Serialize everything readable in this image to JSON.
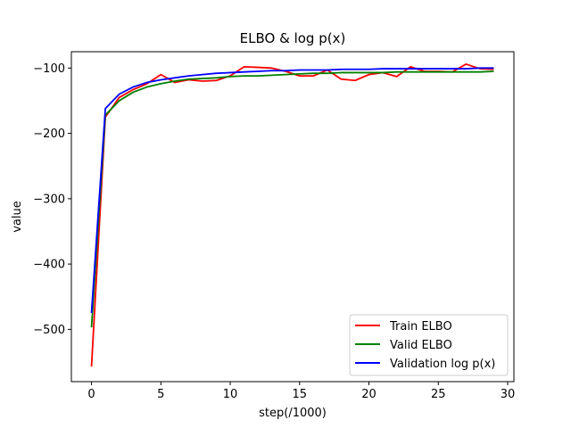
{
  "chart_data": {
    "type": "line",
    "title": "ELBO & log p(x)",
    "xlabel": "step(/1000)",
    "ylabel": "value",
    "xlim": [
      -1.45,
      30.45
    ],
    "ylim": [
      -580,
      -75
    ],
    "xticks": [
      0,
      5,
      10,
      15,
      20,
      25,
      30
    ],
    "yticks": [
      -500,
      -400,
      -300,
      -200,
      -100
    ],
    "grid": false,
    "legend_position": "lower-right",
    "x": [
      0,
      1,
      2,
      3,
      4,
      5,
      6,
      7,
      8,
      9,
      10,
      11,
      12,
      13,
      14,
      15,
      16,
      17,
      18,
      19,
      20,
      21,
      22,
      23,
      24,
      25,
      26,
      27,
      28,
      29
    ],
    "series": [
      {
        "name": "Train ELBO",
        "color": "#ff0000",
        "values": [
          -557,
          -175,
          -145,
          -133,
          -124,
          -110,
          -122,
          -118,
          -120,
          -119,
          -112,
          -98,
          -99,
          -100,
          -105,
          -112,
          -112,
          -103,
          -117,
          -119,
          -110,
          -107,
          -113,
          -98,
          -105,
          -105,
          -106,
          -94,
          -101,
          -102
        ]
      },
      {
        "name": "Valid ELBO",
        "color": "#008000",
        "values": [
          -497,
          -172,
          -150,
          -137,
          -129,
          -124,
          -120,
          -117,
          -116,
          -115,
          -113,
          -112,
          -112,
          -111,
          -110,
          -109,
          -108,
          -108,
          -107,
          -107,
          -107,
          -107,
          -106,
          -106,
          -106,
          -106,
          -106,
          -106,
          -106,
          -105
        ]
      },
      {
        "name": "Validation log p(x)",
        "color": "#0000ff",
        "values": [
          -475,
          -162,
          -140,
          -129,
          -122,
          -118,
          -115,
          -112,
          -110,
          -108,
          -107,
          -106,
          -105,
          -104,
          -104,
          -103,
          -103,
          -103,
          -102,
          -102,
          -102,
          -101,
          -101,
          -101,
          -101,
          -101,
          -101,
          -101,
          -100,
          -100
        ]
      }
    ]
  }
}
